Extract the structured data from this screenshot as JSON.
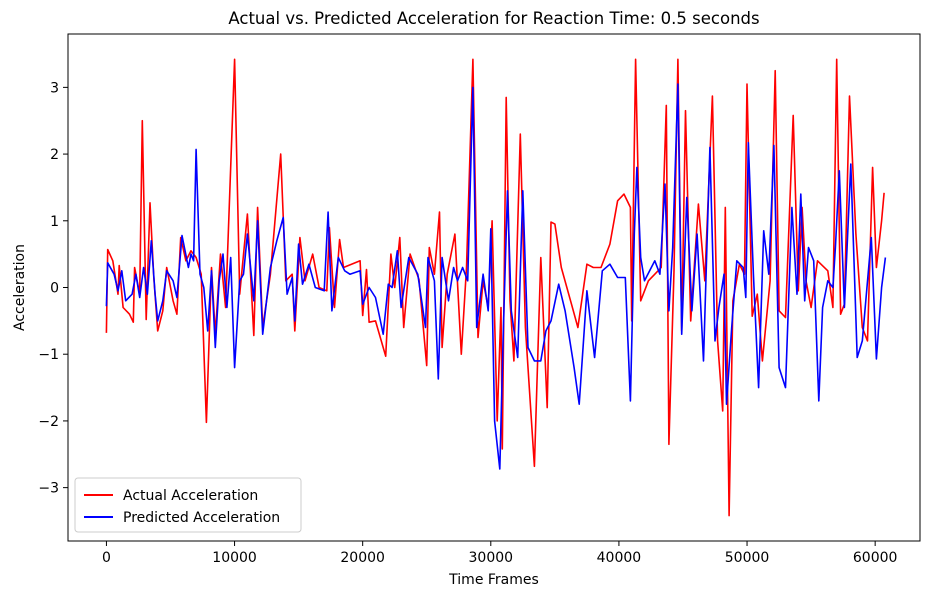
{
  "chart_data": {
    "type": "line",
    "title": "Actual vs. Predicted Acceleration for Reaction Time: 0.5 seconds",
    "xlabel": "Time Frames",
    "ylabel": "Acceleration",
    "xlim": [
      -3000,
      63500
    ],
    "ylim": [
      -3.8,
      3.8
    ],
    "xticks": [
      0,
      10000,
      20000,
      30000,
      40000,
      50000,
      60000
    ],
    "yticks": [
      -3,
      -2,
      -1,
      0,
      1,
      2,
      3
    ],
    "grid": false,
    "legend_position": "lower-left",
    "series": [
      {
        "name": "Actual Acceleration",
        "color": "#ff0000",
        "points": [
          [
            0,
            -0.68
          ],
          [
            100,
            0.57
          ],
          [
            500,
            0.4
          ],
          [
            900,
            -0.1
          ],
          [
            1000,
            0.33
          ],
          [
            1300,
            -0.3
          ],
          [
            1800,
            -0.4
          ],
          [
            2100,
            -0.52
          ],
          [
            2200,
            0.3
          ],
          [
            2600,
            -0.1
          ],
          [
            2800,
            2.5
          ],
          [
            3100,
            -0.48
          ],
          [
            3400,
            1.27
          ],
          [
            3700,
            0.15
          ],
          [
            4000,
            -0.65
          ],
          [
            4400,
            -0.35
          ],
          [
            4700,
            0.3
          ],
          [
            5200,
            -0.2
          ],
          [
            5500,
            -0.4
          ],
          [
            5800,
            0.75
          ],
          [
            6200,
            0.4
          ],
          [
            6600,
            0.55
          ],
          [
            7000,
            0.45
          ],
          [
            7400,
            0.2
          ],
          [
            7800,
            -2.02
          ],
          [
            8200,
            0.3
          ],
          [
            8500,
            -0.7
          ],
          [
            8900,
            0.5
          ],
          [
            9300,
            -0.3
          ],
          [
            10000,
            3.42
          ],
          [
            10400,
            -0.1
          ],
          [
            11000,
            1.1
          ],
          [
            11500,
            -0.72
          ],
          [
            11800,
            1.2
          ],
          [
            12200,
            -0.6
          ],
          [
            12800,
            0.2
          ],
          [
            13600,
            2.0
          ],
          [
            14000,
            0.1
          ],
          [
            14500,
            0.2
          ],
          [
            14700,
            -0.65
          ],
          [
            15100,
            0.75
          ],
          [
            15500,
            0.1
          ],
          [
            16100,
            0.5
          ],
          [
            16600,
            0.0
          ],
          [
            17200,
            -0.05
          ],
          [
            17400,
            0.9
          ],
          [
            17800,
            -0.3
          ],
          [
            18200,
            0.72
          ],
          [
            18500,
            0.3
          ],
          [
            19800,
            0.4
          ],
          [
            20000,
            -0.42
          ],
          [
            20300,
            0.27
          ],
          [
            20500,
            -0.52
          ],
          [
            21000,
            -0.5
          ],
          [
            21800,
            -1.03
          ],
          [
            22200,
            0.5
          ],
          [
            22500,
            0.0
          ],
          [
            22900,
            0.75
          ],
          [
            23200,
            -0.6
          ],
          [
            23700,
            0.5
          ],
          [
            24400,
            0.12
          ],
          [
            25000,
            -1.17
          ],
          [
            25200,
            0.6
          ],
          [
            25600,
            0.2
          ],
          [
            26000,
            1.13
          ],
          [
            26200,
            -0.9
          ],
          [
            26600,
            0.2
          ],
          [
            27200,
            0.8
          ],
          [
            27700,
            -1.0
          ],
          [
            28100,
            0.3
          ],
          [
            28600,
            3.42
          ],
          [
            29000,
            -0.75
          ],
          [
            29400,
            0.1
          ],
          [
            29800,
            -0.3
          ],
          [
            30100,
            1.0
          ],
          [
            30500,
            -2.0
          ],
          [
            30800,
            -0.3
          ],
          [
            30900,
            -2.42
          ],
          [
            31200,
            2.85
          ],
          [
            31500,
            -0.2
          ],
          [
            31800,
            -1.1
          ],
          [
            32300,
            2.3
          ],
          [
            32700,
            -0.6
          ],
          [
            33400,
            -2.68
          ],
          [
            33900,
            0.45
          ],
          [
            34400,
            -1.8
          ],
          [
            34700,
            0.98
          ],
          [
            35000,
            0.95
          ],
          [
            35500,
            0.3
          ],
          [
            36300,
            -0.25
          ],
          [
            36800,
            -0.6
          ],
          [
            37500,
            0.35
          ],
          [
            38000,
            0.3
          ],
          [
            38600,
            0.3
          ],
          [
            39300,
            0.65
          ],
          [
            39900,
            1.3
          ],
          [
            40400,
            1.4
          ],
          [
            40900,
            1.2
          ],
          [
            41000,
            -0.5
          ],
          [
            41300,
            3.42
          ],
          [
            41700,
            -0.2
          ],
          [
            42300,
            0.1
          ],
          [
            42800,
            0.2
          ],
          [
            43300,
            0.3
          ],
          [
            43700,
            2.73
          ],
          [
            43900,
            -2.35
          ],
          [
            44300,
            0.25
          ],
          [
            44600,
            3.42
          ],
          [
            44900,
            -0.65
          ],
          [
            45200,
            2.65
          ],
          [
            45600,
            -0.5
          ],
          [
            46200,
            1.25
          ],
          [
            46700,
            0.1
          ],
          [
            47300,
            2.87
          ],
          [
            47700,
            -0.8
          ],
          [
            48100,
            -1.85
          ],
          [
            48300,
            1.2
          ],
          [
            48600,
            -3.42
          ],
          [
            48900,
            -0.2
          ],
          [
            49400,
            0.35
          ],
          [
            49800,
            0.2
          ],
          [
            50000,
            3.05
          ],
          [
            50400,
            -0.43
          ],
          [
            50800,
            -0.1
          ],
          [
            51200,
            -1.1
          ],
          [
            51800,
            0.1
          ],
          [
            52200,
            3.25
          ],
          [
            52500,
            -0.35
          ],
          [
            53000,
            -0.45
          ],
          [
            53600,
            2.58
          ],
          [
            54000,
            -0.05
          ],
          [
            54300,
            1.2
          ],
          [
            54600,
            0.1
          ],
          [
            55000,
            -0.3
          ],
          [
            55500,
            0.4
          ],
          [
            56300,
            0.25
          ],
          [
            56700,
            -0.3
          ],
          [
            57000,
            3.42
          ],
          [
            57300,
            -0.4
          ],
          [
            57600,
            -0.25
          ],
          [
            58000,
            2.87
          ],
          [
            58500,
            0.8
          ],
          [
            59000,
            -0.6
          ],
          [
            59400,
            -0.8
          ],
          [
            59800,
            1.8
          ],
          [
            60100,
            0.3
          ],
          [
            60500,
            1.0
          ],
          [
            60700,
            1.42
          ]
        ]
      },
      {
        "name": "Predicted Acceleration",
        "color": "#0000ff",
        "points": [
          [
            0,
            -0.28
          ],
          [
            100,
            0.37
          ],
          [
            600,
            0.2
          ],
          [
            900,
            -0.05
          ],
          [
            1200,
            0.25
          ],
          [
            1500,
            -0.2
          ],
          [
            2000,
            -0.1
          ],
          [
            2300,
            0.2
          ],
          [
            2600,
            -0.15
          ],
          [
            2900,
            0.3
          ],
          [
            3200,
            -0.1
          ],
          [
            3500,
            0.7
          ],
          [
            3800,
            -0.1
          ],
          [
            4000,
            -0.5
          ],
          [
            4400,
            -0.2
          ],
          [
            4700,
            0.25
          ],
          [
            5200,
            0.1
          ],
          [
            5500,
            -0.15
          ],
          [
            5900,
            0.78
          ],
          [
            6400,
            0.3
          ],
          [
            6600,
            0.5
          ],
          [
            6800,
            0.4
          ],
          [
            7000,
            2.07
          ],
          [
            7300,
            0.2
          ],
          [
            7600,
            0.0
          ],
          [
            7900,
            -0.65
          ],
          [
            8200,
            0.25
          ],
          [
            8500,
            -0.9
          ],
          [
            8800,
            0.1
          ],
          [
            9100,
            0.5
          ],
          [
            9400,
            -0.3
          ],
          [
            9700,
            0.45
          ],
          [
            10000,
            -1.2
          ],
          [
            10400,
            0.1
          ],
          [
            10700,
            0.2
          ],
          [
            11000,
            0.8
          ],
          [
            11500,
            -0.2
          ],
          [
            11800,
            1.0
          ],
          [
            12200,
            -0.7
          ],
          [
            12800,
            0.3
          ],
          [
            13300,
            0.7
          ],
          [
            13800,
            1.05
          ],
          [
            14100,
            -0.1
          ],
          [
            14500,
            0.15
          ],
          [
            14700,
            -0.5
          ],
          [
            15000,
            0.65
          ],
          [
            15300,
            0.05
          ],
          [
            15800,
            0.35
          ],
          [
            16300,
            0.0
          ],
          [
            17000,
            -0.05
          ],
          [
            17300,
            1.13
          ],
          [
            17600,
            -0.35
          ],
          [
            18100,
            0.45
          ],
          [
            18600,
            0.25
          ],
          [
            19000,
            0.2
          ],
          [
            19800,
            0.25
          ],
          [
            20000,
            -0.25
          ],
          [
            20500,
            0.0
          ],
          [
            21000,
            -0.15
          ],
          [
            21600,
            -0.7
          ],
          [
            22000,
            0.05
          ],
          [
            22300,
            0.0
          ],
          [
            22700,
            0.55
          ],
          [
            23000,
            -0.3
          ],
          [
            23600,
            0.45
          ],
          [
            24300,
            0.2
          ],
          [
            24900,
            -0.6
          ],
          [
            25100,
            0.45
          ],
          [
            25600,
            0.1
          ],
          [
            25900,
            -1.37
          ],
          [
            26200,
            0.45
          ],
          [
            26700,
            -0.2
          ],
          [
            27100,
            0.3
          ],
          [
            27400,
            0.1
          ],
          [
            27800,
            0.3
          ],
          [
            28200,
            0.1
          ],
          [
            28600,
            3.0
          ],
          [
            28900,
            -0.6
          ],
          [
            29400,
            0.2
          ],
          [
            29800,
            -0.35
          ],
          [
            30000,
            0.88
          ],
          [
            30300,
            -2.0
          ],
          [
            30700,
            -2.72
          ],
          [
            31000,
            -0.5
          ],
          [
            31300,
            1.45
          ],
          [
            31600,
            -0.35
          ],
          [
            32100,
            -1.05
          ],
          [
            32500,
            1.45
          ],
          [
            32900,
            -0.9
          ],
          [
            33400,
            -1.1
          ],
          [
            33900,
            -1.1
          ],
          [
            34300,
            -0.65
          ],
          [
            34700,
            -0.5
          ],
          [
            35300,
            0.05
          ],
          [
            35800,
            -0.35
          ],
          [
            36500,
            -1.2
          ],
          [
            36900,
            -1.75
          ],
          [
            37500,
            -0.05
          ],
          [
            38100,
            -1.05
          ],
          [
            38700,
            0.25
          ],
          [
            39300,
            0.35
          ],
          [
            39900,
            0.15
          ],
          [
            40500,
            0.15
          ],
          [
            40900,
            -1.7
          ],
          [
            41200,
            0.8
          ],
          [
            41400,
            1.8
          ],
          [
            41700,
            0.45
          ],
          [
            42000,
            0.1
          ],
          [
            42800,
            0.4
          ],
          [
            43200,
            0.2
          ],
          [
            43600,
            1.55
          ],
          [
            43900,
            -0.35
          ],
          [
            44200,
            0.6
          ],
          [
            44600,
            3.05
          ],
          [
            44900,
            -0.7
          ],
          [
            45300,
            1.35
          ],
          [
            45700,
            -0.35
          ],
          [
            46100,
            0.8
          ],
          [
            46600,
            -1.1
          ],
          [
            47100,
            2.1
          ],
          [
            47500,
            -0.8
          ],
          [
            47800,
            -0.3
          ],
          [
            48200,
            0.2
          ],
          [
            48400,
            -1.75
          ],
          [
            48800,
            -0.6
          ],
          [
            49200,
            0.4
          ],
          [
            49700,
            0.3
          ],
          [
            49900,
            -0.15
          ],
          [
            50100,
            2.17
          ],
          [
            50500,
            0.2
          ],
          [
            50900,
            -1.5
          ],
          [
            51300,
            0.85
          ],
          [
            51700,
            0.2
          ],
          [
            52100,
            2.13
          ],
          [
            52500,
            -1.2
          ],
          [
            53000,
            -1.5
          ],
          [
            53500,
            1.2
          ],
          [
            53900,
            -0.1
          ],
          [
            54200,
            1.4
          ],
          [
            54500,
            -0.2
          ],
          [
            54800,
            0.6
          ],
          [
            55200,
            0.4
          ],
          [
            55600,
            -1.7
          ],
          [
            55900,
            -0.3
          ],
          [
            56300,
            0.1
          ],
          [
            56700,
            0.0
          ],
          [
            56900,
            0.6
          ],
          [
            57200,
            1.75
          ],
          [
            57600,
            -0.3
          ],
          [
            58100,
            1.85
          ],
          [
            58600,
            -1.05
          ],
          [
            59000,
            -0.8
          ],
          [
            59700,
            0.75
          ],
          [
            60100,
            -1.07
          ],
          [
            60500,
            0.0
          ],
          [
            60800,
            0.45
          ]
        ]
      }
    ]
  }
}
